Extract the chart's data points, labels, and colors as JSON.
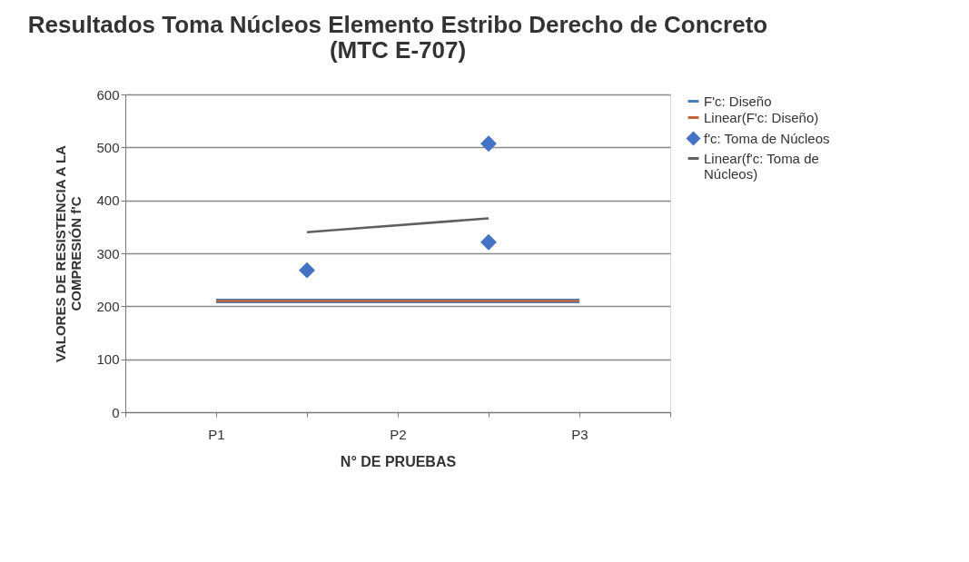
{
  "chart_data": {
    "type": "scatter",
    "title": "Resultados Toma Núcleos Elemento Estribo Derecho de Concreto (MTC E-707)",
    "xlabel": "N° DE PRUEBAS",
    "ylabel": "VALORES DE RESISTENCIA A LA COMPRESIÓN f'C",
    "categories": [
      null,
      "P1",
      null,
      "P2",
      null,
      "P3",
      null
    ],
    "ylim": [
      0,
      600
    ],
    "yticks": [
      0,
      100,
      200,
      300,
      400,
      500,
      600
    ],
    "grid": "y",
    "legend": "right",
    "series": [
      {
        "name": "F'c: Diseño",
        "type": "line",
        "color": "#4a7ebb",
        "values": [
          null,
          210,
          210,
          210,
          210,
          210,
          null
        ]
      },
      {
        "name": "Linear(F'c: Diseño)",
        "type": "line",
        "color": "#c0643c",
        "values": [
          null,
          210,
          210,
          210,
          210,
          210,
          null
        ]
      },
      {
        "name": "f'c: Toma de Núcleos",
        "type": "scatter",
        "marker": "diamond",
        "color": "#4472c4",
        "values": [
          null,
          null,
          268,
          null,
          507,
          null,
          null
        ]
      },
      {
        "type": "scatter",
        "marker": "diamond",
        "color": "#4472c4",
        "values": [
          null,
          null,
          null,
          null,
          321,
          null,
          null
        ]
      },
      {
        "name": "Linear(f'c: Toma de Núcleos)",
        "type": "line",
        "color": "#606060",
        "values": [
          null,
          null,
          340,
          null,
          366,
          null,
          null
        ]
      }
    ]
  }
}
